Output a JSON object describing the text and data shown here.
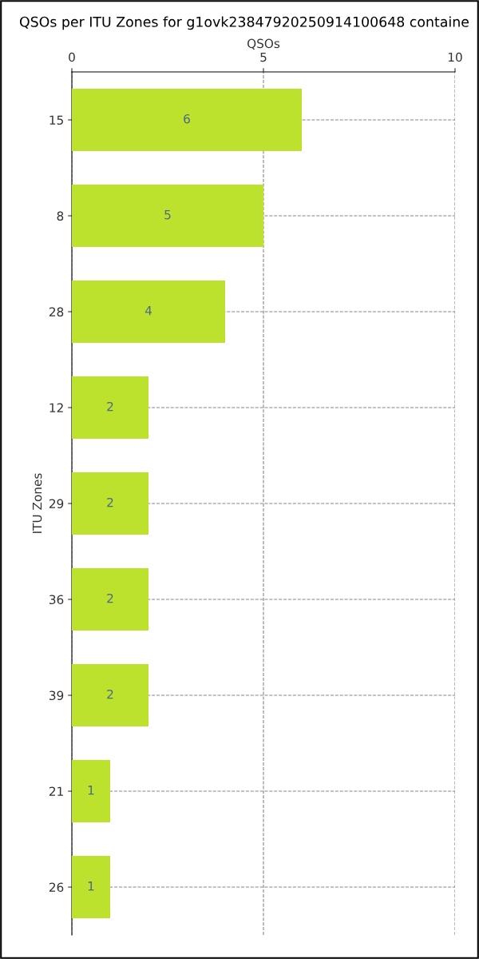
{
  "chart_data": {
    "type": "bar",
    "orientation": "horizontal",
    "title": "QSOs per ITU Zones for g1ovk23847920250914100648 containe",
    "xlabel": "QSOs",
    "ylabel": "ITU Zones",
    "categories": [
      "15",
      "8",
      "28",
      "12",
      "29",
      "36",
      "39",
      "21",
      "26"
    ],
    "values": [
      6,
      5,
      4,
      2,
      2,
      2,
      2,
      1,
      1
    ],
    "color": "#bde22e",
    "xlim": [
      0,
      10
    ],
    "xticks": [
      0,
      5,
      10
    ],
    "grid": true,
    "data_labels": true
  }
}
